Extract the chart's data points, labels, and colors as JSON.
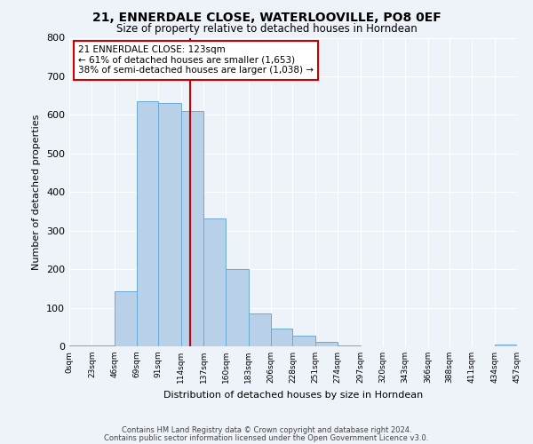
{
  "title": "21, ENNERDALE CLOSE, WATERLOOVILLE, PO8 0EF",
  "subtitle": "Size of property relative to detached houses in Horndean",
  "xlabel": "Distribution of detached houses by size in Horndean",
  "ylabel": "Number of detached properties",
  "bin_edges": [
    0,
    23,
    46,
    69,
    91,
    114,
    137,
    160,
    183,
    206,
    228,
    251,
    274,
    297,
    320,
    343,
    366,
    388,
    411,
    434,
    457
  ],
  "bin_labels": [
    "0sqm",
    "23sqm",
    "46sqm",
    "69sqm",
    "91sqm",
    "114sqm",
    "137sqm",
    "160sqm",
    "183sqm",
    "206sqm",
    "228sqm",
    "251sqm",
    "274sqm",
    "297sqm",
    "320sqm",
    "343sqm",
    "366sqm",
    "388sqm",
    "411sqm",
    "434sqm",
    "457sqm"
  ],
  "counts": [
    2,
    2,
    143,
    635,
    630,
    610,
    332,
    201,
    85,
    46,
    27,
    12,
    2,
    0,
    0,
    0,
    0,
    0,
    0,
    4
  ],
  "bar_color": "#b8d0e8",
  "bar_edge_color": "#6aaad4",
  "property_line_x": 123,
  "vline_color": "#cc0000",
  "annotation_box_text": "21 ENNERDALE CLOSE: 123sqm\n← 61% of detached houses are smaller (1,653)\n38% of semi-detached houses are larger (1,038) →",
  "annotation_box_facecolor": "#ffffff",
  "annotation_box_edgecolor": "#cc0000",
  "ylim": [
    0,
    800
  ],
  "yticks": [
    0,
    100,
    200,
    300,
    400,
    500,
    600,
    700,
    800
  ],
  "background_color": "#eef2f9",
  "grid_color": "#ffffff",
  "footer_line1": "Contains HM Land Registry data © Crown copyright and database right 2024.",
  "footer_line2": "Contains public sector information licensed under the Open Government Licence v3.0."
}
